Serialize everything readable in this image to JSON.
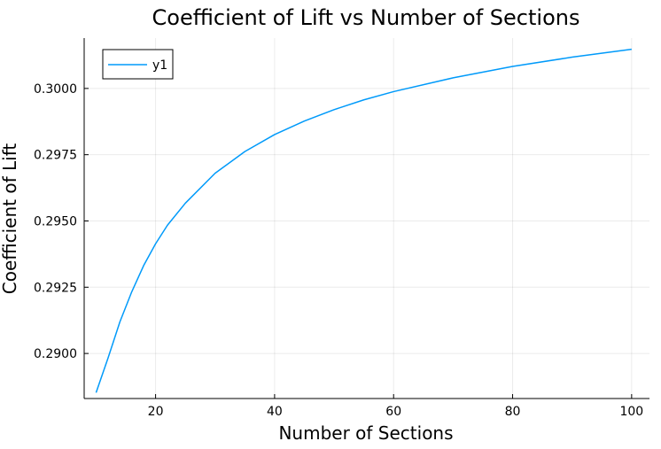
{
  "chart_data": {
    "type": "line",
    "title": "Coefficient of Lift vs Number of Sections",
    "xlabel": "Number of Sections",
    "ylabel": "Coefficient of Lift",
    "xlim": [
      8,
      103
    ],
    "ylim": [
      0.2883,
      0.3019
    ],
    "xticks": [
      20,
      40,
      60,
      80,
      100
    ],
    "xtick_labels": [
      "20",
      "40",
      "60",
      "80",
      "100"
    ],
    "yticks": [
      0.29,
      0.2925,
      0.295,
      0.2975,
      0.3
    ],
    "ytick_labels": [
      "0.2900",
      "0.2925",
      "0.2950",
      "0.2975",
      "0.3000"
    ],
    "grid": true,
    "legend_position": "top-left",
    "series": [
      {
        "name": "y1",
        "color": "#009AFA",
        "x": [
          10,
          12,
          14,
          16,
          18,
          20,
          22,
          25,
          30,
          35,
          40,
          45,
          50,
          55,
          60,
          70,
          80,
          90,
          100
        ],
        "y": [
          0.28852,
          0.28982,
          0.29119,
          0.29233,
          0.29332,
          0.29414,
          0.29484,
          0.29567,
          0.2968,
          0.29762,
          0.29826,
          0.29877,
          0.2992,
          0.29957,
          0.29988,
          0.3004,
          0.30083,
          0.30118,
          0.30148
        ]
      }
    ]
  }
}
